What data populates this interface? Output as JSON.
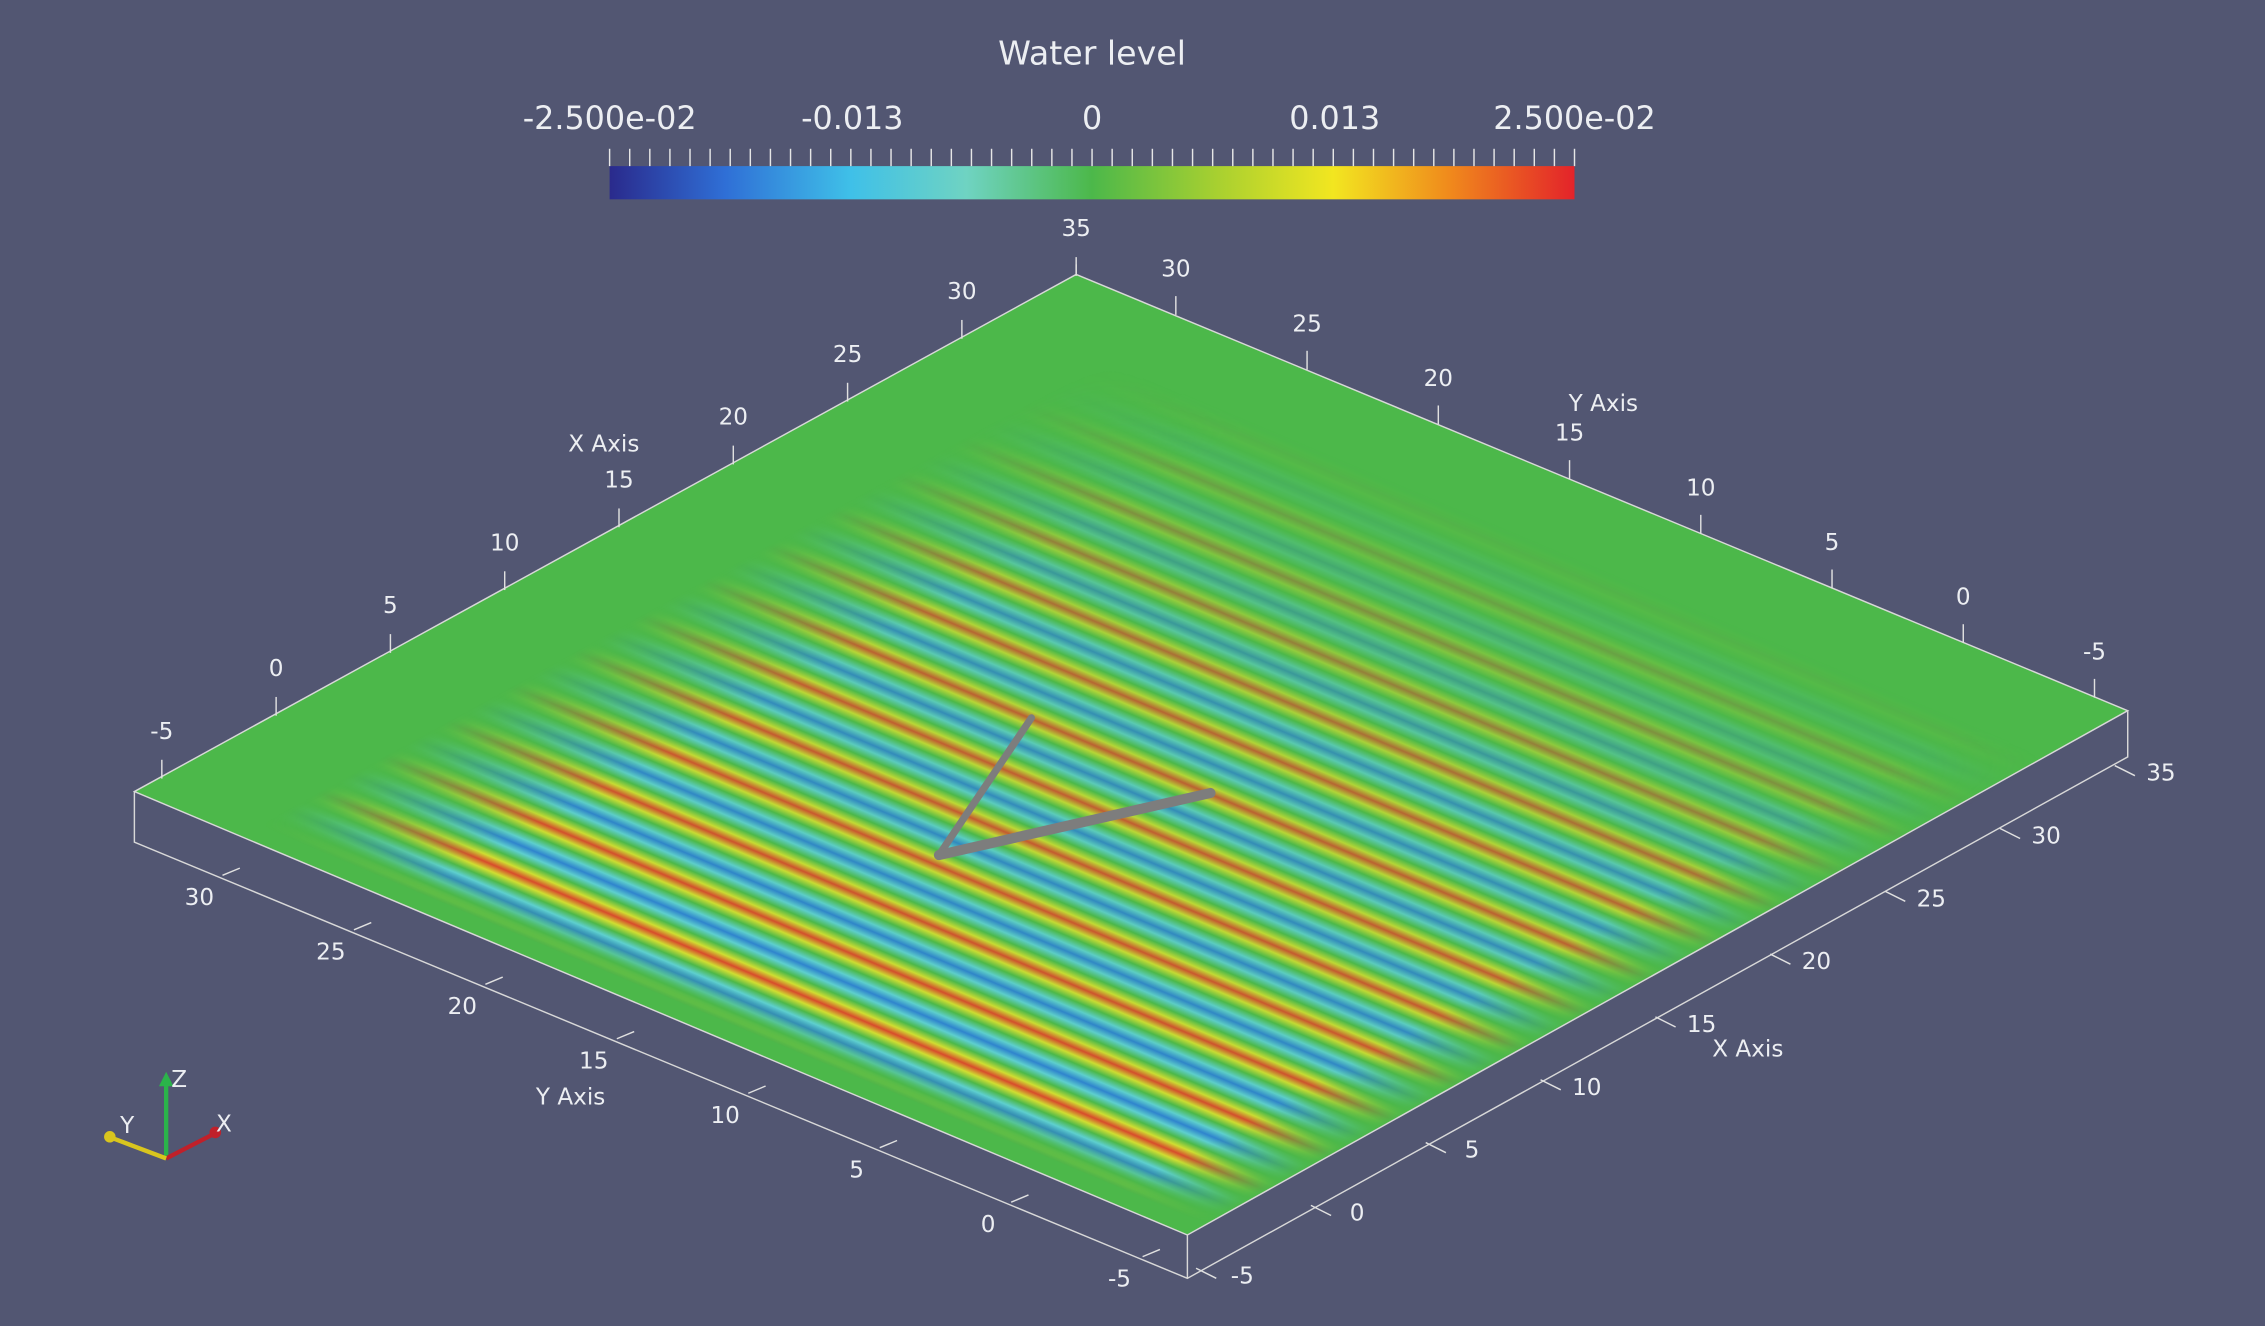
{
  "colorbar": {
    "title": "Water level",
    "labels": [
      "-2.500e-02",
      "-0.013",
      "0",
      "0.013",
      "2.500e-02"
    ]
  },
  "axes": {
    "back_left": {
      "title": "X Axis",
      "labels": [
        "-5",
        "0",
        "5",
        "10",
        "15",
        "20",
        "25",
        "30",
        "35"
      ]
    },
    "back_right": {
      "title": "Y Axis",
      "labels": [
        "30",
        "25",
        "20",
        "15",
        "10",
        "5",
        "0",
        "-5"
      ]
    },
    "front_left": {
      "title": "Y Axis",
      "labels": [
        "30",
        "25",
        "20",
        "15",
        "10",
        "5",
        "0",
        "-5"
      ]
    },
    "front_right": {
      "title": "X Axis",
      "labels": [
        "35",
        "30",
        "25",
        "20",
        "15",
        "10",
        "5",
        "0",
        "-5"
      ]
    }
  },
  "orientation": {
    "z": "Z",
    "y": "Y",
    "x": "X"
  }
}
